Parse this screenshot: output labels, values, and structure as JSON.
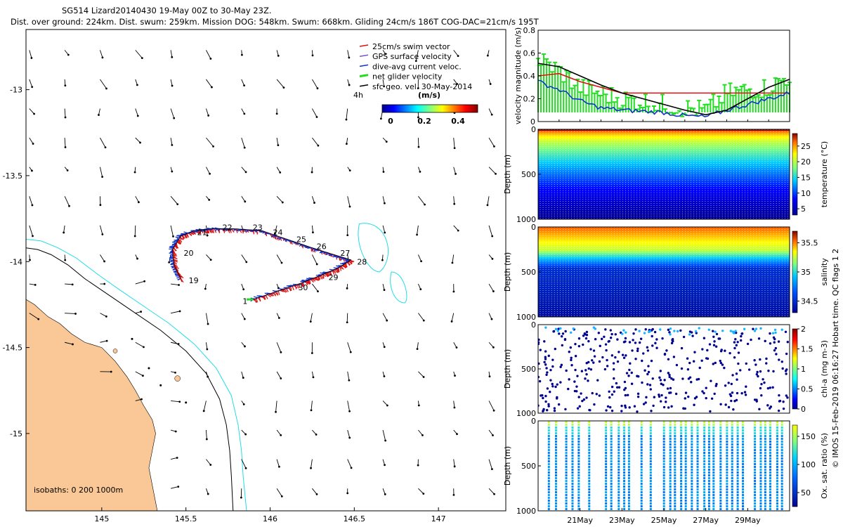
{
  "header": {
    "title": "SG514 Lizard20140430 19-May 00Z to 30-May 23Z.",
    "subtitle": "Dist. over ground: 224km. Dist. swum: 259km. Mission DOG: 548km. Swum: 668km. Gliding 24cm/s 186T COG-DAC=21cm/s 195T"
  },
  "colors": {
    "land": "#f9c896",
    "coast_line": "#000000",
    "isobath_200": "#000000",
    "isobath_1000": "#22dde8",
    "swim": "#dd1111",
    "dac": "#1133cc",
    "net_velocity": "#22dd22",
    "surface_geo_velocity": "#000000",
    "gps_velocity": "#7755cc"
  },
  "map": {
    "xticks": [
      "145",
      "145.5",
      "146",
      "146.5",
      "147"
    ],
    "yticks": [
      "-13",
      "-13.5",
      "-14",
      "-14.5",
      "-15"
    ],
    "xlim": [
      144.55,
      147.4
    ],
    "ylim": [
      -15.45,
      -12.65
    ],
    "isobath_note": "isobaths: 0   200  1000m",
    "track_day_labels": [
      "19",
      "20",
      "21",
      "22",
      "23",
      "24",
      "25",
      "26",
      "27",
      "28",
      "29",
      "30",
      "1"
    ],
    "legend": [
      {
        "label": "25cm/s swim vector",
        "key": "swim"
      },
      {
        "label": "GPS surface velocity",
        "key": "gps"
      },
      {
        "label": "dive-avg current veloc.",
        "key": "dac"
      },
      {
        "label": "net glider velocity",
        "key": "net"
      },
      {
        "label": "sfc geo. vel. 30-May-2014",
        "key": "geo"
      }
    ],
    "legend_unit": "4h",
    "colorbar": {
      "title": "(m/s)",
      "ticks": [
        "0",
        "0.2",
        "0.4"
      ]
    }
  },
  "chart_data": [
    {
      "type": "line",
      "title": "",
      "ylabel": "velocity magnitude (m/s)",
      "ylim": [
        0,
        0.8
      ],
      "yticks": [
        "0",
        "0.2",
        "0.4",
        "0.6",
        "0.8"
      ],
      "x_days": [
        19,
        20,
        21,
        22,
        23,
        24,
        25,
        26,
        27,
        28,
        29,
        30,
        31
      ],
      "series": [
        {
          "name": "swim speed",
          "color": "#dd1111",
          "values": [
            0.4,
            0.42,
            0.35,
            0.3,
            0.25,
            0.25,
            0.25,
            0.25,
            0.25,
            0.25,
            0.25,
            0.25,
            0.25
          ]
        },
        {
          "name": "dive-avg current",
          "color": "#1133cc",
          "values": [
            0.35,
            0.28,
            0.18,
            0.12,
            0.1,
            0.09,
            0.08,
            0.05,
            0.04,
            0.1,
            0.15,
            0.2,
            0.25
          ]
        },
        {
          "name": "net glider velocity",
          "color": "#22dd22",
          "values": [
            0.55,
            0.45,
            0.3,
            0.25,
            0.2,
            0.18,
            0.15,
            0.12,
            0.1,
            0.25,
            0.28,
            0.3,
            0.4
          ]
        },
        {
          "name": "sfc geo vel",
          "color": "#000000",
          "values": [
            0.51,
            0.48,
            0.4,
            0.32,
            0.25,
            0.2,
            0.15,
            0.1,
            0.06,
            0.1,
            0.2,
            0.3,
            0.37
          ]
        }
      ]
    },
    {
      "type": "scatter",
      "ylabel": "Depth (m)",
      "yticks": [
        "0",
        "500",
        "1000"
      ],
      "cbar_label": "temperature (°C)",
      "cbar_ticks": [
        "5",
        "10",
        "15",
        "20",
        "25"
      ],
      "clim": [
        3,
        29
      ]
    },
    {
      "type": "scatter",
      "ylabel": "Depth (m)",
      "yticks": [
        "0",
        "500",
        "1000"
      ],
      "cbar_label": "salinity",
      "cbar_ticks": [
        "34.5",
        "35",
        "35.5"
      ],
      "clim": [
        34.3,
        35.7
      ]
    },
    {
      "type": "scatter",
      "ylabel": "Depth (m)",
      "yticks": [
        "0",
        "500",
        "1000"
      ],
      "cbar_label": "chl-a (mg m-3)",
      "cbar_ticks": [
        "0",
        "0.5",
        "1",
        "1.5",
        "2"
      ],
      "clim": [
        0,
        2
      ]
    },
    {
      "type": "scatter",
      "ylabel": "Depth (m)",
      "yticks": [
        "0",
        "500",
        "1000"
      ],
      "cbar_label": "Ox. sat. ratio (%)",
      "cbar_ticks": [
        "50",
        "100",
        "150"
      ],
      "clim": [
        25,
        170
      ],
      "xticks": [
        "21May",
        "23May",
        "25May",
        "27May",
        "29May"
      ]
    }
  ],
  "footer": {
    "credit": "© IMOS 15-Feb-2019 06:16:27 Hobart time. QC flags 1  2"
  }
}
